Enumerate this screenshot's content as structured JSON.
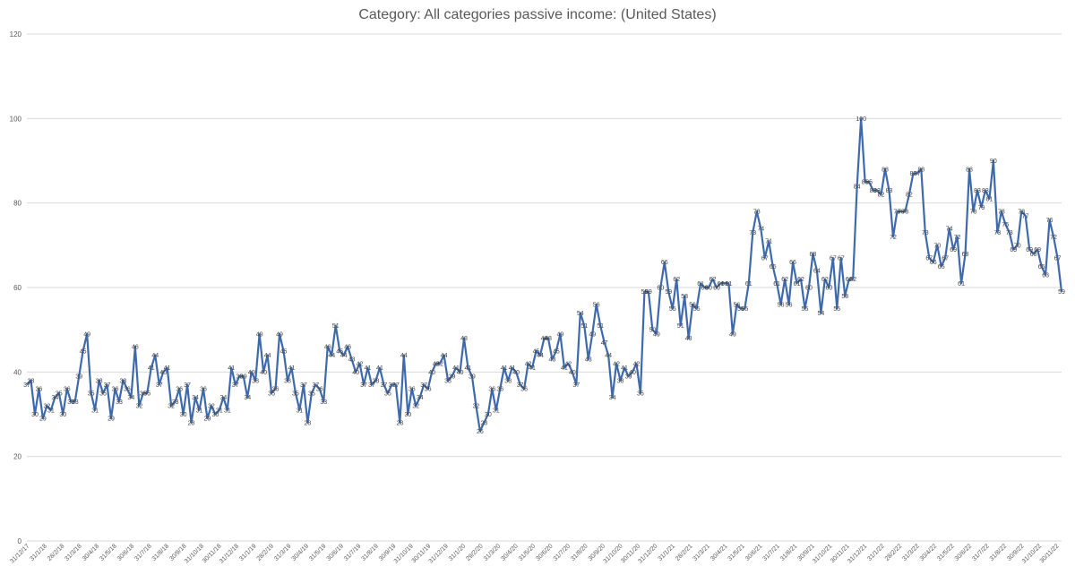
{
  "chart_data": {
    "type": "line",
    "title": "Category: All categories passive income: (United States)",
    "xlabel": "",
    "ylabel": "",
    "ylim": [
      0,
      120
    ],
    "yticks": [
      0,
      20,
      40,
      60,
      80,
      100,
      120
    ],
    "grid": true,
    "line_color": "#3e6aad",
    "x_tick_labels": [
      "31/12/17",
      "31/1/18",
      "28/2/18",
      "31/3/18",
      "30/4/18",
      "31/5/18",
      "30/6/18",
      "31/7/18",
      "31/8/18",
      "30/9/18",
      "31/10/18",
      "30/11/18",
      "31/12/18",
      "31/1/19",
      "28/2/19",
      "31/3/19",
      "30/4/19",
      "31/5/19",
      "30/6/19",
      "31/7/19",
      "31/8/19",
      "30/9/19",
      "31/10/19",
      "30/11/19",
      "31/12/19",
      "31/1/20",
      "29/2/20",
      "31/3/20",
      "30/4/20",
      "31/5/20",
      "30/6/20",
      "31/7/20",
      "31/8/20",
      "30/9/20",
      "31/10/20",
      "30/11/20",
      "31/12/20",
      "31/1/21",
      "28/2/21",
      "31/3/21",
      "30/4/21",
      "31/5/21",
      "30/6/21",
      "31/7/21",
      "31/8/21",
      "30/9/21",
      "31/10/21",
      "30/11/21",
      "31/12/21",
      "31/1/22",
      "28/2/22",
      "31/3/22",
      "30/4/22",
      "31/5/22",
      "30/6/22",
      "31/7/22",
      "31/8/22",
      "30/9/22",
      "31/10/22",
      "30/11/22"
    ],
    "series": [
      {
        "values": [
          37,
          38,
          30,
          36,
          29,
          32,
          31,
          34,
          35,
          30,
          36,
          33,
          33,
          39,
          45,
          49,
          35,
          31,
          38,
          35,
          37,
          29,
          36,
          33,
          38,
          36,
          34,
          46,
          32,
          35,
          35,
          41,
          44,
          37,
          40,
          41,
          32,
          33,
          36,
          30,
          37,
          28,
          34,
          31,
          36,
          29,
          32,
          30,
          31,
          34,
          31,
          41,
          37,
          39,
          39,
          34,
          40,
          38,
          49,
          40,
          44,
          35,
          36,
          49,
          45,
          38,
          41,
          35,
          31,
          37,
          28,
          35,
          37,
          36,
          33,
          46,
          44,
          51,
          45,
          44,
          46,
          43,
          40,
          42,
          37,
          41,
          37,
          38,
          41,
          37,
          35,
          37,
          37,
          28,
          44,
          30,
          36,
          32,
          34,
          37,
          36,
          40,
          42,
          42,
          44,
          38,
          39,
          41,
          40,
          48,
          41,
          39,
          32,
          26,
          28,
          30,
          36,
          31,
          36,
          41,
          38,
          41,
          40,
          37,
          36,
          42,
          41,
          45,
          44,
          48,
          48,
          43,
          45,
          49,
          41,
          42,
          40,
          37,
          54,
          51,
          43,
          49,
          56,
          51,
          47,
          44,
          34,
          42,
          38,
          41,
          39,
          40,
          42,
          35,
          59,
          59,
          50,
          49,
          60,
          66,
          59,
          55,
          62,
          51,
          58,
          48,
          56,
          55,
          61,
          60,
          60,
          62,
          60,
          61,
          61,
          61,
          49,
          56,
          55,
          55,
          61,
          73,
          78,
          74,
          67,
          71,
          65,
          61,
          56,
          62,
          56,
          66,
          61,
          62,
          55,
          60,
          68,
          64,
          54,
          62,
          60,
          67,
          55,
          67,
          58,
          62,
          62,
          84,
          100,
          85,
          85,
          83,
          83,
          82,
          88,
          83,
          72,
          78,
          78,
          78,
          82,
          87,
          87,
          88,
          73,
          67,
          66,
          70,
          65,
          67,
          74,
          69,
          72,
          61,
          68,
          88,
          78,
          83,
          79,
          83,
          81,
          90,
          73,
          78,
          75,
          73,
          69,
          70,
          78,
          77,
          69,
          68,
          69,
          65,
          63,
          76,
          72,
          67,
          59
        ]
      }
    ]
  }
}
